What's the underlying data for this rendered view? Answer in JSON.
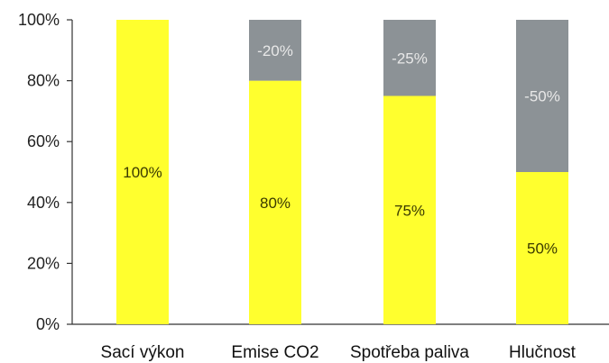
{
  "chart_data": {
    "type": "bar",
    "stacked": true,
    "categories": [
      "Sací výkon",
      "Emise CO2",
      "Spotřeba paliva",
      "Hlučnost"
    ],
    "series": [
      {
        "values": [
          100,
          80,
          75,
          50
        ],
        "labels": [
          "100%",
          "80%",
          "75%",
          "50%"
        ],
        "color": "#ffff2e"
      },
      {
        "values": [
          0,
          20,
          25,
          50
        ],
        "labels": [
          "",
          "-20%",
          "-25%",
          "-50%"
        ],
        "color": "#8c9296"
      }
    ],
    "yticks": [
      "0%",
      "20%",
      "40%",
      "60%",
      "80%",
      "100%"
    ],
    "ylim": [
      0,
      100
    ],
    "grid": false,
    "legend": "none",
    "title": "",
    "xlabel": "",
    "ylabel": ""
  }
}
